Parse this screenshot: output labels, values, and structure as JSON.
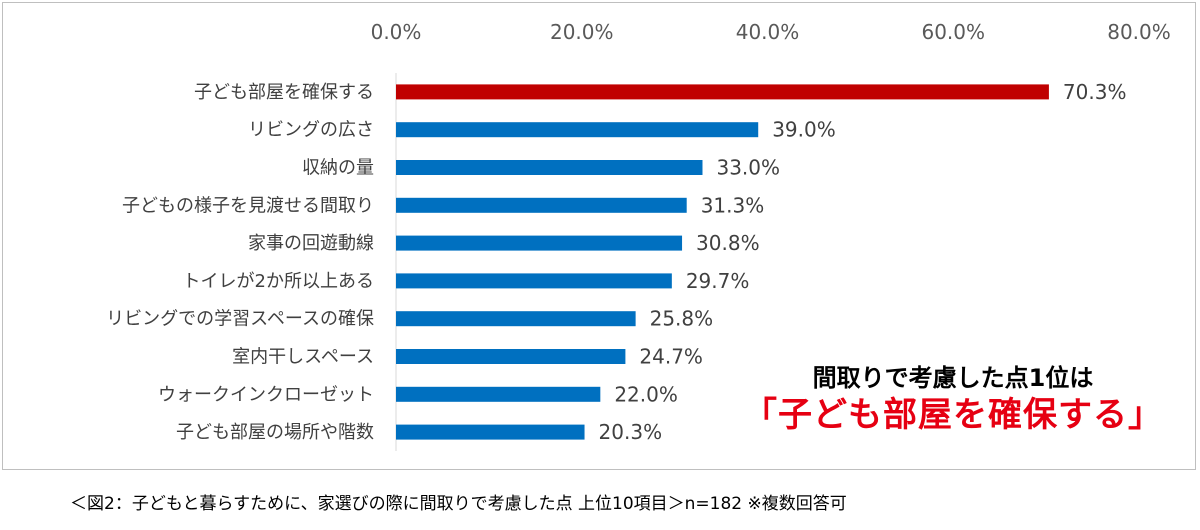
{
  "chart_data": {
    "type": "bar",
    "orientation": "horizontal",
    "categories": [
      "子ども部屋を確保する",
      "リビングの広さ",
      "収納の量",
      "子どもの様子を見渡せる間取り",
      "家事の回遊動線",
      "トイレが2か所以上ある",
      "リビングでの学習スペースの確保",
      "室内干しスペース",
      "ウォークインクローゼット",
      "子ども部屋の場所や階数"
    ],
    "values": [
      70.3,
      39.0,
      33.0,
      31.3,
      30.8,
      29.7,
      25.8,
      24.7,
      22.0,
      20.3
    ],
    "value_labels": [
      "70.3%",
      "39.0%",
      "33.0%",
      "31.3%",
      "30.8%",
      "29.7%",
      "25.8%",
      "24.7%",
      "22.0%",
      "20.3%"
    ],
    "xlim": [
      0,
      80
    ],
    "x_ticks": [
      0,
      20,
      40,
      60,
      80
    ],
    "x_tick_labels": [
      "0.0%",
      "20.0%",
      "40.0%",
      "60.0%",
      "80.0%"
    ],
    "x_axis_position": "top",
    "grid": false,
    "legend": "none",
    "highlight_index": 0,
    "colors": {
      "highlight": "#c00000",
      "default": "#0070c0"
    }
  },
  "callout": {
    "line1": "間取りで考慮した点1位は",
    "line2": "「子ども部屋を確保する」"
  },
  "caption": "＜図2：子どもと暮らすために、家選びの際に間取りで考慮した点 上位10項目＞n=182 ※複数回答可"
}
